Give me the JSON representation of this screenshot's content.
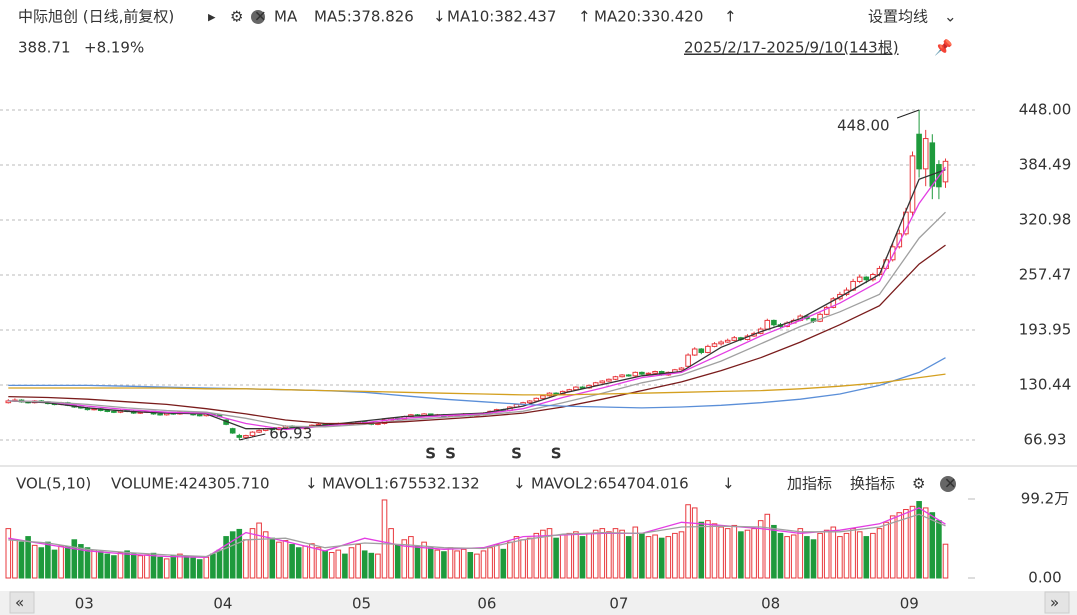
{
  "header": {
    "title": "中际旭创 (日线,前复权)",
    "ma": "MA",
    "ma5": "MA5:378.826",
    "ma5_arrow": "↓",
    "ma10": "MA10:382.437",
    "ma10_arrow": "↑",
    "ma20": "MA20:330.420",
    "ma20_arrow": "↑",
    "settings": "设置均线",
    "price": "388.71",
    "change": "+8.19%",
    "range": "2025/2/17-2025/9/10(143根)"
  },
  "chart_data": {
    "type": "candlestick",
    "candles": [
      [
        110,
        114,
        109,
        112
      ],
      [
        112,
        115,
        111,
        113
      ],
      [
        113,
        114,
        110,
        111
      ],
      [
        111,
        112,
        109,
        110
      ],
      [
        110,
        113,
        109,
        112
      ],
      [
        112,
        113,
        110,
        111
      ],
      [
        111,
        112,
        108,
        109
      ],
      [
        109,
        110,
        107,
        108
      ],
      [
        108,
        111,
        107,
        110
      ],
      [
        110,
        111,
        106,
        107
      ],
      [
        107,
        108,
        104,
        105
      ],
      [
        105,
        106,
        103,
        104
      ],
      [
        104,
        105,
        101,
        102
      ],
      [
        102,
        104,
        101,
        103
      ],
      [
        103,
        104,
        100,
        101
      ],
      [
        101,
        102,
        99,
        100
      ],
      [
        100,
        101,
        98,
        99
      ],
      [
        99,
        102,
        98,
        101
      ],
      [
        101,
        102,
        99,
        100
      ],
      [
        100,
        101,
        97,
        98
      ],
      [
        98,
        100,
        97,
        99
      ],
      [
        99,
        101,
        98,
        100
      ],
      [
        100,
        100,
        96,
        97
      ],
      [
        97,
        98,
        95,
        96
      ],
      [
        96,
        99,
        95,
        98
      ],
      [
        98,
        99,
        96,
        97
      ],
      [
        97,
        100,
        96,
        99
      ],
      [
        99,
        100,
        97,
        98
      ],
      [
        98,
        99,
        95,
        96
      ],
      [
        96,
        97,
        94,
        95
      ],
      [
        95,
        98,
        94,
        97
      ],
      [
        97,
        98,
        95,
        96
      ],
      [
        96,
        96,
        93,
        94
      ],
      [
        90,
        91,
        84,
        85
      ],
      [
        80,
        81,
        74,
        75
      ],
      [
        72,
        74,
        66.93,
        70
      ],
      [
        70,
        73,
        69,
        72
      ],
      [
        72,
        77,
        71,
        76
      ],
      [
        76,
        79,
        75,
        78
      ],
      [
        78,
        81,
        77,
        80
      ],
      [
        80,
        81,
        78,
        79
      ],
      [
        79,
        82,
        78,
        81
      ],
      [
        81,
        84,
        80,
        83
      ],
      [
        83,
        84,
        81,
        82
      ],
      [
        82,
        83,
        79,
        80
      ],
      [
        80,
        83,
        79,
        82
      ],
      [
        82,
        85,
        81,
        84
      ],
      [
        84,
        86,
        83,
        85
      ],
      [
        85,
        86,
        82,
        83
      ],
      [
        83,
        85,
        82,
        84
      ],
      [
        84,
        87,
        83,
        86
      ],
      [
        86,
        87,
        84,
        85
      ],
      [
        85,
        87,
        84,
        86
      ],
      [
        86,
        89,
        85,
        88
      ],
      [
        88,
        89,
        86,
        87
      ],
      [
        87,
        88,
        84,
        85
      ],
      [
        85,
        87,
        84,
        86
      ],
      [
        86,
        91,
        85,
        90
      ],
      [
        90,
        93,
        89,
        92
      ],
      [
        92,
        93,
        90,
        91
      ],
      [
        91,
        95,
        90,
        94
      ],
      [
        94,
        97,
        93,
        96
      ],
      [
        96,
        97,
        94,
        95
      ],
      [
        95,
        98,
        94,
        97
      ],
      [
        97,
        97,
        94,
        95
      ],
      [
        95,
        97,
        94,
        96
      ],
      [
        96,
        97,
        93,
        94
      ],
      [
        94,
        96,
        93,
        95
      ],
      [
        95,
        97,
        94,
        96
      ],
      [
        96,
        98,
        95,
        97
      ],
      [
        97,
        98,
        94,
        95
      ],
      [
        95,
        97,
        94,
        96
      ],
      [
        96,
        99,
        95,
        98
      ],
      [
        98,
        101,
        97,
        100
      ],
      [
        100,
        103,
        99,
        102
      ],
      [
        102,
        103,
        100,
        101
      ],
      [
        101,
        106,
        100,
        105
      ],
      [
        105,
        109,
        104,
        108
      ],
      [
        108,
        111,
        107,
        110
      ],
      [
        110,
        113,
        109,
        112
      ],
      [
        112,
        116,
        111,
        115
      ],
      [
        115,
        119,
        114,
        118
      ],
      [
        118,
        122,
        117,
        121
      ],
      [
        121,
        122,
        119,
        120
      ],
      [
        120,
        124,
        119,
        123
      ],
      [
        123,
        126,
        122,
        125
      ],
      [
        125,
        129,
        124,
        128
      ],
      [
        128,
        129,
        126,
        127
      ],
      [
        127,
        131,
        126,
        130
      ],
      [
        130,
        134,
        129,
        133
      ],
      [
        133,
        136,
        132,
        135
      ],
      [
        135,
        138,
        134,
        137
      ],
      [
        137,
        141,
        136,
        140
      ],
      [
        140,
        143,
        139,
        142
      ],
      [
        142,
        143,
        140,
        141
      ],
      [
        141,
        146,
        140,
        145
      ],
      [
        145,
        146,
        142,
        143
      ],
      [
        143,
        145,
        142,
        144
      ],
      [
        144,
        147,
        143,
        146
      ],
      [
        146,
        147,
        141,
        142
      ],
      [
        142,
        146,
        141,
        145
      ],
      [
        145,
        149,
        144,
        148
      ],
      [
        148,
        151,
        147,
        150
      ],
      [
        152,
        167,
        151,
        165
      ],
      [
        165,
        174,
        164,
        172
      ],
      [
        172,
        173,
        166,
        168
      ],
      [
        168,
        177,
        167,
        175
      ],
      [
        175,
        180,
        174,
        178
      ],
      [
        178,
        182,
        176,
        180
      ],
      [
        180,
        184,
        179,
        182
      ],
      [
        182,
        187,
        181,
        185
      ],
      [
        185,
        186,
        181,
        183
      ],
      [
        183,
        189,
        182,
        187
      ],
      [
        187,
        192,
        186,
        190
      ],
      [
        190,
        197,
        189,
        195
      ],
      [
        195,
        207,
        194,
        205
      ],
      [
        205,
        206,
        198,
        200
      ],
      [
        200,
        202,
        196,
        198
      ],
      [
        198,
        204,
        197,
        202
      ],
      [
        202,
        207,
        201,
        205
      ],
      [
        205,
        212,
        204,
        210
      ],
      [
        210,
        211,
        205,
        207
      ],
      [
        207,
        208,
        202,
        204
      ],
      [
        204,
        214,
        203,
        212
      ],
      [
        212,
        222,
        211,
        220
      ],
      [
        220,
        232,
        219,
        230
      ],
      [
        230,
        238,
        228,
        235
      ],
      [
        235,
        243,
        233,
        240
      ],
      [
        240,
        253,
        239,
        250
      ],
      [
        250,
        258,
        248,
        255
      ],
      [
        255,
        256,
        248,
        252
      ],
      [
        252,
        260,
        250,
        258
      ],
      [
        258,
        268,
        256,
        265
      ],
      [
        265,
        278,
        263,
        275
      ],
      [
        275,
        294,
        273,
        290
      ],
      [
        290,
        310,
        288,
        305
      ],
      [
        305,
        335,
        303,
        330
      ],
      [
        330,
        400,
        325,
        395
      ],
      [
        420,
        448,
        370,
        380
      ],
      [
        380,
        425,
        360,
        415
      ],
      [
        410,
        420,
        345,
        360
      ],
      [
        385,
        390,
        345,
        359.3
      ],
      [
        365,
        392,
        358,
        388.71
      ]
    ],
    "up_color": "#e8383d",
    "down_color": "#1e9a3c",
    "ylim": [
      41.5,
      465.3
    ],
    "yticks": [
      {
        "value": 448,
        "label": "448.00"
      },
      384.49,
      320.98,
      257.47,
      193.95,
      130.44,
      66.93
    ],
    "grid": true,
    "ma_x": [
      0,
      6,
      12,
      18,
      24,
      30,
      36,
      42,
      48,
      54,
      60,
      66,
      72,
      78,
      84,
      90,
      96,
      102,
      108,
      114,
      120,
      126,
      132,
      138,
      142
    ],
    "ma_series": [
      {
        "color": "#333333",
        "values": [
          112,
          110,
          104,
          100,
          98,
          97,
          80,
          80,
          84,
          89,
          94,
          96,
          98,
          106,
          121,
          131,
          141,
          146,
          174,
          192,
          207,
          232,
          258,
          368,
          379
        ]
      },
      {
        "color": "#e33ee3",
        "values": [
          112,
          111,
          106,
          102,
          99,
          98,
          86,
          79,
          83,
          87,
          92,
          95,
          97,
          103,
          116,
          127,
          139,
          145,
          166,
          187,
          205,
          225,
          250,
          340,
          382
        ]
      },
      {
        "color": "#a0a0a0",
        "values": [
          112,
          111,
          108,
          104,
          101,
          99,
          92,
          83,
          82,
          85,
          90,
          93,
          96,
          100,
          110,
          121,
          133,
          142,
          158,
          178,
          198,
          215,
          235,
          300,
          330
        ]
      },
      {
        "color": "#7a1c1c",
        "values": [
          117,
          116,
          114,
          111,
          108,
          103,
          97,
          90,
          86,
          86,
          88,
          91,
          94,
          98,
          105,
          114,
          124,
          134,
          147,
          162,
          180,
          200,
          222,
          270,
          292
        ]
      },
      {
        "color": "#5b8fd8",
        "values": [
          130,
          130,
          130,
          129,
          128,
          127,
          126,
          125,
          124,
          122,
          118,
          114,
          111,
          108,
          106,
          105,
          104,
          105,
          107,
          110,
          114,
          120,
          130,
          145,
          162
        ]
      },
      {
        "color": "#d4a020",
        "values": [
          127,
          127,
          127,
          127,
          127,
          126,
          126,
          125,
          124,
          123,
          122,
          121,
          120,
          119,
          119,
          120,
          121,
          122,
          123,
          124,
          126,
          129,
          133,
          139,
          143
        ]
      }
    ],
    "annotations": [
      {
        "index": 138,
        "value": 448,
        "label": "448.00"
      },
      {
        "index": 35,
        "value": 66.93,
        "label": "66.93"
      }
    ],
    "signals": {
      "label": "S",
      "indices": [
        64,
        67,
        77,
        83
      ]
    },
    "months": [
      {
        "index": 10,
        "label": "03"
      },
      {
        "index": 31,
        "label": "04"
      },
      {
        "index": 52,
        "label": "05"
      },
      {
        "index": 71,
        "label": "06"
      },
      {
        "index": 91,
        "label": "07"
      },
      {
        "index": 114,
        "label": "08"
      },
      {
        "index": 135,
        "label": "09"
      }
    ],
    "volume": {
      "title": "VOL(5,10)",
      "last": "VOLUME:424305.710",
      "last_arrow": "↓",
      "mavol1": "MAVOL1:675532.132",
      "mavol1_arrow": "↓",
      "mavol2": "MAVOL2:654704.016",
      "mavol2_arrow": "↓",
      "add": "加指标",
      "switch": "换指标",
      "values": [
        620000,
        480000,
        450000,
        520000,
        410000,
        380000,
        450000,
        350000,
        400000,
        390000,
        480000,
        420000,
        380000,
        350000,
        330000,
        300000,
        280000,
        320000,
        340000,
        300000,
        280000,
        290000,
        310000,
        260000,
        240000,
        280000,
        300000,
        270000,
        250000,
        230000,
        260000,
        300000,
        350000,
        520000,
        580000,
        610000,
        480000,
        620000,
        690000,
        580000,
        500000,
        450000,
        470000,
        420000,
        380000,
        400000,
        430000,
        380000,
        340000,
        320000,
        350000,
        300000,
        380000,
        420000,
        340000,
        310000,
        300000,
        980000,
        620000,
        420000,
        480000,
        520000,
        400000,
        450000,
        380000,
        350000,
        330000,
        380000,
        340000,
        360000,
        320000,
        300000,
        340000,
        380000,
        420000,
        360000,
        450000,
        520000,
        480000,
        500000,
        560000,
        600000,
        620000,
        500000,
        540000,
        560000,
        580000,
        520000,
        560000,
        600000,
        620000,
        580000,
        620000,
        600000,
        520000,
        640000,
        560000,
        520000,
        540000,
        500000,
        520000,
        560000,
        580000,
        920000,
        880000,
        700000,
        720000,
        680000,
        640000,
        620000,
        660000,
        580000,
        600000,
        620000,
        720000,
        800000,
        660000,
        560000,
        520000,
        540000,
        620000,
        520000,
        480000,
        560000,
        600000,
        640000,
        520000,
        560000,
        620000,
        580000,
        520000,
        560000,
        620000,
        700000,
        780000,
        820000,
        860000,
        900000,
        960000,
        880000,
        820000,
        720000,
        424305.71
      ],
      "ylim": [
        0,
        992000
      ],
      "yticks": [
        {
          "value": 992000,
          "label": "99.2万"
        },
        {
          "value": 0,
          "label": "0.00"
        }
      ],
      "ma_series": [
        {
          "color": "#e33ee3",
          "values": [
            500000,
            420000,
            340000,
            300000,
            270000,
            260000,
            570000,
            460000,
            340000,
            500000,
            400000,
            360000,
            380000,
            520000,
            540000,
            560000,
            560000,
            700000,
            660000,
            620000,
            560000,
            600000,
            680000,
            880000,
            675532.132
          ]
        },
        {
          "color": "#a0a0a0",
          "values": [
            480000,
            440000,
            360000,
            320000,
            290000,
            270000,
            480000,
            500000,
            380000,
            440000,
            420000,
            380000,
            370000,
            480000,
            550000,
            570000,
            560000,
            640000,
            650000,
            640000,
            580000,
            580000,
            640000,
            800000,
            654704.016
          ]
        }
      ]
    }
  }
}
